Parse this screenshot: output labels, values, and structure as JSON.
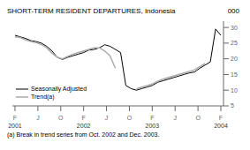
{
  "chart_data": {
    "type": "line",
    "title": "SHORT-TERM RESIDENT DEPARTURES, Indonesia",
    "ylabel": "000",
    "footnote": "(a) Break in trend series from Oct. 2002 and Dec. 2003.",
    "x": [
      0,
      1,
      2,
      3,
      4,
      5,
      6,
      7,
      8,
      9,
      10,
      11,
      12,
      13,
      14,
      15,
      16,
      17,
      18,
      19,
      20,
      21,
      22,
      23,
      24,
      25,
      26,
      27,
      28,
      29,
      30,
      31,
      32,
      33,
      34,
      35,
      36,
      37,
      38,
      39
    ],
    "xlim": [
      -0.5,
      39.5
    ],
    "xticks": [
      {
        "value": 0,
        "label": "F"
      },
      {
        "value": 4.333333333333333,
        "label": "J"
      },
      {
        "value": 8.666666666666666,
        "label": "O"
      },
      {
        "value": 13,
        "label": "F"
      },
      {
        "value": 17.333333333333332,
        "label": "J"
      },
      {
        "value": 21.666666666666664,
        "label": "O"
      },
      {
        "value": 26,
        "label": "F"
      },
      {
        "value": 30.333333333333332,
        "label": "J"
      },
      {
        "value": 34.666666666666664,
        "label": "O"
      },
      {
        "value": 39,
        "label": "F"
      }
    ],
    "annotations": [
      {
        "text": "2001",
        "x": 0
      },
      {
        "text": "2002",
        "x": 13
      },
      {
        "text": "2003",
        "x": 26
      },
      {
        "text": "2004",
        "x": 39
      }
    ],
    "ylim": [
      5,
      32
    ],
    "yticks": [
      5,
      10,
      15,
      20,
      25,
      30
    ],
    "grid": false,
    "legend": "lower left",
    "series": [
      {
        "name": "Seasonally Adjusted",
        "color": "#000000",
        "values": [
          27.5,
          27.0,
          26.5,
          25.8,
          25.5,
          25.0,
          24.0,
          22.5,
          20.5,
          19.8,
          20.5,
          21.0,
          21.5,
          22.0,
          22.8,
          23.0,
          23.5,
          24.5,
          24.0,
          23.0,
          22.0,
          11.5,
          10.5,
          10.0,
          10.5,
          11.0,
          11.5,
          12.5,
          13.0,
          13.5,
          14.0,
          14.5,
          15.0,
          15.5,
          15.8,
          17.0,
          18.0,
          19.0,
          29.5,
          27.5
        ]
      },
      {
        "name": "Trend(a)",
        "color": "#aaaaaa",
        "values": [
          27.0,
          26.8,
          26.0,
          25.5,
          25.2,
          24.5,
          23.5,
          21.8,
          20.5,
          20.0,
          20.8,
          21.5,
          22.0,
          22.5,
          23.0,
          23.5,
          23.5,
          22.5,
          21.0,
          17.0,
          null,
          null,
          null,
          10.5,
          11.0,
          11.5,
          12.0,
          12.8,
          13.5,
          14.0,
          14.5,
          15.0,
          15.5,
          16.0,
          16.5,
          17.5,
          18.5,
          null,
          null,
          27.0
        ]
      }
    ]
  }
}
